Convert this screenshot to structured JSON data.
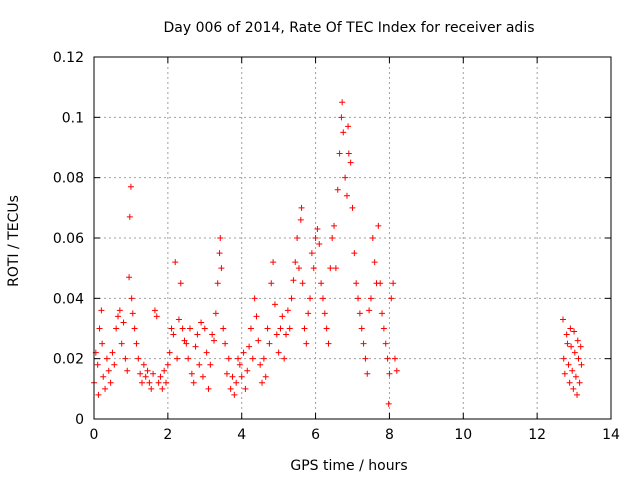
{
  "chart_data": {
    "type": "scatter",
    "title": "Day 006 of 2014, Rate Of TEC Index for receiver adis",
    "xlabel": "GPS time / hours",
    "ylabel": "ROTI / TECUs",
    "xlim": [
      0,
      14
    ],
    "ylim": [
      0,
      0.12
    ],
    "x_ticks": [
      0,
      2,
      4,
      6,
      8,
      10,
      12,
      14
    ],
    "x_tick_labels": [
      "0",
      "2",
      "4",
      "6",
      "8",
      "10",
      "12",
      "14"
    ],
    "y_ticks": [
      0,
      0.02,
      0.04,
      0.06,
      0.08,
      0.1,
      0.12
    ],
    "y_tick_labels": [
      "0",
      "0.02",
      "0.04",
      "0.06",
      "0.08",
      "0.1",
      "0.12"
    ],
    "grid": true,
    "marker": "+",
    "color": "#ff0000",
    "series": [
      {
        "name": "ROTI",
        "points": [
          [
            0.0,
            0.012
          ],
          [
            0.05,
            0.022
          ],
          [
            0.1,
            0.018
          ],
          [
            0.12,
            0.008
          ],
          [
            0.15,
            0.03
          ],
          [
            0.2,
            0.036
          ],
          [
            0.22,
            0.025
          ],
          [
            0.25,
            0.014
          ],
          [
            0.3,
            0.01
          ],
          [
            0.35,
            0.02
          ],
          [
            0.4,
            0.016
          ],
          [
            0.45,
            0.012
          ],
          [
            0.5,
            0.022
          ],
          [
            0.55,
            0.018
          ],
          [
            0.6,
            0.03
          ],
          [
            0.65,
            0.034
          ],
          [
            0.7,
            0.036
          ],
          [
            0.75,
            0.025
          ],
          [
            0.8,
            0.032
          ],
          [
            0.85,
            0.02
          ],
          [
            0.9,
            0.016
          ],
          [
            0.95,
            0.047
          ],
          [
            0.97,
            0.067
          ],
          [
            1.0,
            0.077
          ],
          [
            1.02,
            0.04
          ],
          [
            1.05,
            0.035
          ],
          [
            1.1,
            0.03
          ],
          [
            1.15,
            0.025
          ],
          [
            1.2,
            0.02
          ],
          [
            1.25,
            0.015
          ],
          [
            1.3,
            0.012
          ],
          [
            1.35,
            0.018
          ],
          [
            1.4,
            0.014
          ],
          [
            1.45,
            0.016
          ],
          [
            1.5,
            0.012
          ],
          [
            1.55,
            0.01
          ],
          [
            1.6,
            0.015
          ],
          [
            1.65,
            0.036
          ],
          [
            1.7,
            0.034
          ],
          [
            1.75,
            0.012
          ],
          [
            1.8,
            0.014
          ],
          [
            1.85,
            0.01
          ],
          [
            1.9,
            0.016
          ],
          [
            1.95,
            0.012
          ],
          [
            2.0,
            0.018
          ],
          [
            2.05,
            0.022
          ],
          [
            2.1,
            0.03
          ],
          [
            2.15,
            0.028
          ],
          [
            2.2,
            0.052
          ],
          [
            2.25,
            0.02
          ],
          [
            2.3,
            0.033
          ],
          [
            2.35,
            0.045
          ],
          [
            2.4,
            0.03
          ],
          [
            2.45,
            0.026
          ],
          [
            2.5,
            0.025
          ],
          [
            2.55,
            0.02
          ],
          [
            2.6,
            0.03
          ],
          [
            2.65,
            0.015
          ],
          [
            2.7,
            0.012
          ],
          [
            2.75,
            0.024
          ],
          [
            2.8,
            0.028
          ],
          [
            2.85,
            0.018
          ],
          [
            2.9,
            0.032
          ],
          [
            2.95,
            0.014
          ],
          [
            3.0,
            0.03
          ],
          [
            3.05,
            0.022
          ],
          [
            3.1,
            0.01
          ],
          [
            3.15,
            0.018
          ],
          [
            3.2,
            0.028
          ],
          [
            3.25,
            0.026
          ],
          [
            3.3,
            0.035
          ],
          [
            3.35,
            0.045
          ],
          [
            3.4,
            0.055
          ],
          [
            3.42,
            0.06
          ],
          [
            3.45,
            0.05
          ],
          [
            3.5,
            0.03
          ],
          [
            3.55,
            0.025
          ],
          [
            3.6,
            0.015
          ],
          [
            3.65,
            0.02
          ],
          [
            3.7,
            0.01
          ],
          [
            3.75,
            0.014
          ],
          [
            3.8,
            0.008
          ],
          [
            3.85,
            0.012
          ],
          [
            3.9,
            0.02
          ],
          [
            3.95,
            0.018
          ],
          [
            4.0,
            0.014
          ],
          [
            4.05,
            0.022
          ],
          [
            4.1,
            0.01
          ],
          [
            4.15,
            0.016
          ],
          [
            4.2,
            0.024
          ],
          [
            4.25,
            0.03
          ],
          [
            4.3,
            0.02
          ],
          [
            4.35,
            0.04
          ],
          [
            4.4,
            0.034
          ],
          [
            4.45,
            0.026
          ],
          [
            4.5,
            0.018
          ],
          [
            4.55,
            0.012
          ],
          [
            4.6,
            0.02
          ],
          [
            4.65,
            0.014
          ],
          [
            4.7,
            0.03
          ],
          [
            4.75,
            0.025
          ],
          [
            4.8,
            0.045
          ],
          [
            4.85,
            0.052
          ],
          [
            4.9,
            0.038
          ],
          [
            4.95,
            0.028
          ],
          [
            5.0,
            0.022
          ],
          [
            5.05,
            0.03
          ],
          [
            5.1,
            0.034
          ],
          [
            5.15,
            0.02
          ],
          [
            5.2,
            0.028
          ],
          [
            5.25,
            0.036
          ],
          [
            5.3,
            0.03
          ],
          [
            5.35,
            0.04
          ],
          [
            5.4,
            0.046
          ],
          [
            5.45,
            0.052
          ],
          [
            5.5,
            0.06
          ],
          [
            5.55,
            0.05
          ],
          [
            5.6,
            0.066
          ],
          [
            5.62,
            0.07
          ],
          [
            5.65,
            0.045
          ],
          [
            5.7,
            0.03
          ],
          [
            5.75,
            0.025
          ],
          [
            5.8,
            0.035
          ],
          [
            5.85,
            0.04
          ],
          [
            5.9,
            0.055
          ],
          [
            5.95,
            0.05
          ],
          [
            6.0,
            0.06
          ],
          [
            6.05,
            0.063
          ],
          [
            6.1,
            0.058
          ],
          [
            6.15,
            0.045
          ],
          [
            6.2,
            0.04
          ],
          [
            6.25,
            0.035
          ],
          [
            6.3,
            0.03
          ],
          [
            6.35,
            0.025
          ],
          [
            6.4,
            0.05
          ],
          [
            6.45,
            0.06
          ],
          [
            6.5,
            0.064
          ],
          [
            6.55,
            0.05
          ],
          [
            6.6,
            0.076
          ],
          [
            6.65,
            0.088
          ],
          [
            6.7,
            0.1
          ],
          [
            6.72,
            0.105
          ],
          [
            6.75,
            0.095
          ],
          [
            6.8,
            0.08
          ],
          [
            6.85,
            0.074
          ],
          [
            6.88,
            0.097
          ],
          [
            6.9,
            0.088
          ],
          [
            6.95,
            0.085
          ],
          [
            7.0,
            0.07
          ],
          [
            7.05,
            0.055
          ],
          [
            7.1,
            0.045
          ],
          [
            7.15,
            0.04
          ],
          [
            7.2,
            0.035
          ],
          [
            7.25,
            0.03
          ],
          [
            7.3,
            0.025
          ],
          [
            7.35,
            0.02
          ],
          [
            7.4,
            0.015
          ],
          [
            7.45,
            0.036
          ],
          [
            7.5,
            0.04
          ],
          [
            7.55,
            0.06
          ],
          [
            7.6,
            0.052
          ],
          [
            7.65,
            0.045
          ],
          [
            7.7,
            0.064
          ],
          [
            7.75,
            0.045
          ],
          [
            7.8,
            0.035
          ],
          [
            7.85,
            0.03
          ],
          [
            7.9,
            0.025
          ],
          [
            7.95,
            0.02
          ],
          [
            7.98,
            0.005
          ],
          [
            8.0,
            0.015
          ],
          [
            8.05,
            0.04
          ],
          [
            8.1,
            0.045
          ],
          [
            8.15,
            0.02
          ],
          [
            8.2,
            0.016
          ],
          [
            12.7,
            0.033
          ],
          [
            12.72,
            0.02
          ],
          [
            12.75,
            0.015
          ],
          [
            12.8,
            0.028
          ],
          [
            12.82,
            0.025
          ],
          [
            12.85,
            0.018
          ],
          [
            12.88,
            0.012
          ],
          [
            12.9,
            0.03
          ],
          [
            12.92,
            0.024
          ],
          [
            12.95,
            0.016
          ],
          [
            12.98,
            0.01
          ],
          [
            13.0,
            0.029
          ],
          [
            13.02,
            0.022
          ],
          [
            13.05,
            0.014
          ],
          [
            13.08,
            0.008
          ],
          [
            13.1,
            0.026
          ],
          [
            13.12,
            0.02
          ],
          [
            13.15,
            0.012
          ],
          [
            13.18,
            0.024
          ],
          [
            13.2,
            0.018
          ]
        ]
      }
    ]
  }
}
